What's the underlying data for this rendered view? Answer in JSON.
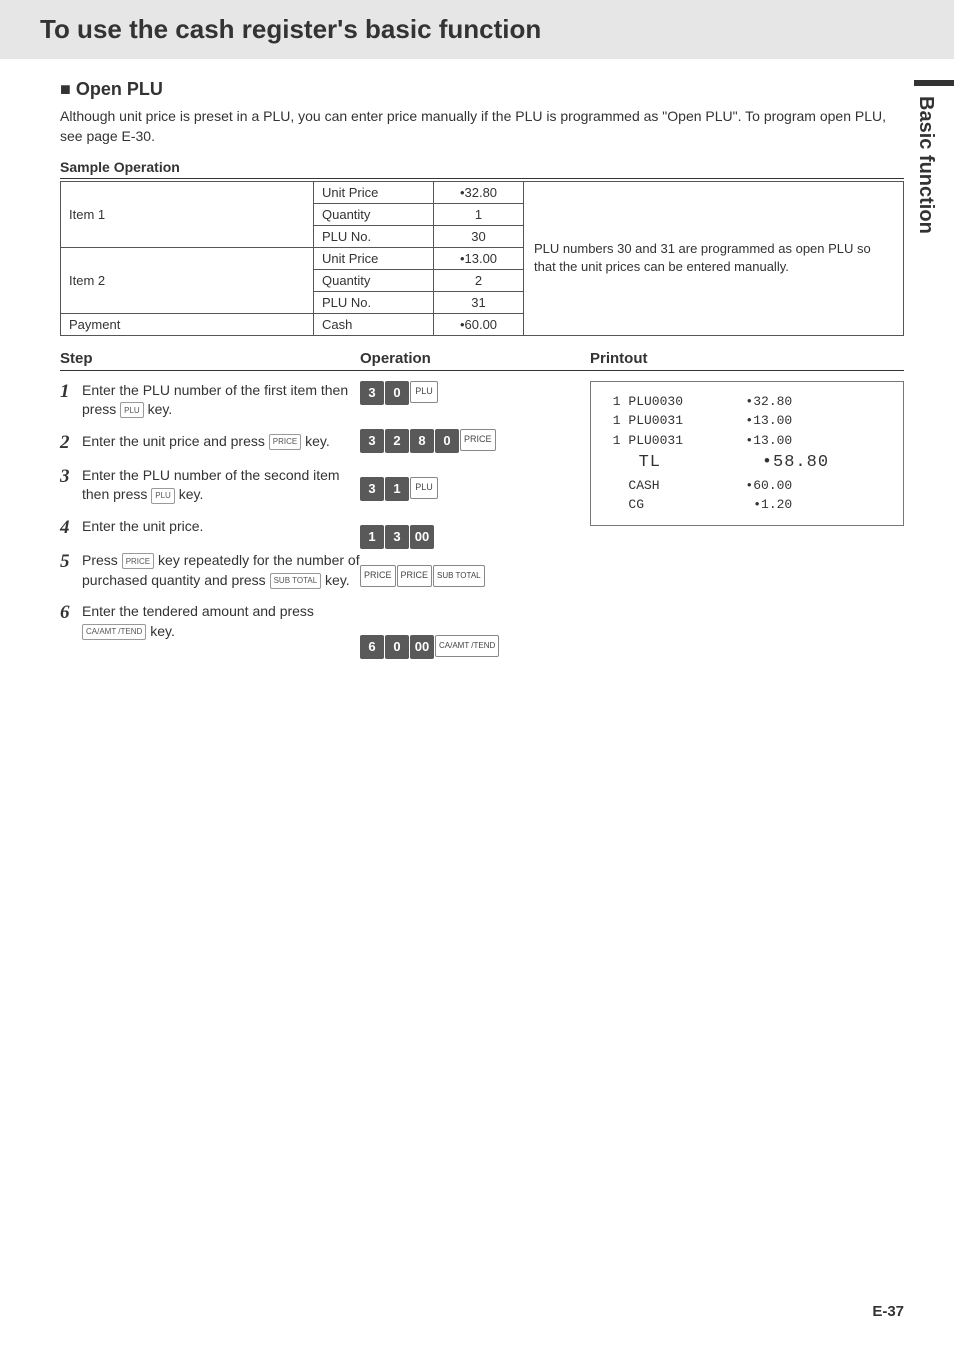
{
  "title": "To use the cash register's basic function",
  "side_tab": "Basic function",
  "section_heading": "■ Open PLU",
  "intro": "Although unit price is preset in a PLU, you can enter price manually if the PLU is programmed as \"Open PLU\". To program open PLU, see page E-30.",
  "sample_heading": "Sample Operation",
  "table": {
    "item1": {
      "label": "Item 1",
      "rows": [
        {
          "k": "Unit Price",
          "v": "•32.80"
        },
        {
          "k": "Quantity",
          "v": "1"
        },
        {
          "k": "PLU No.",
          "v": "30"
        }
      ]
    },
    "item2": {
      "label": "Item 2",
      "rows": [
        {
          "k": "Unit Price",
          "v": "•13.00"
        },
        {
          "k": "Quantity",
          "v": "2"
        },
        {
          "k": "PLU No.",
          "v": "31"
        }
      ]
    },
    "payment": {
      "label": "Payment",
      "k": "Cash",
      "v": "•60.00"
    },
    "note": "PLU numbers 30 and 31 are programmed as open PLU so that the unit prices can be entered manually."
  },
  "col_headers": {
    "step": "Step",
    "op": "Operation",
    "print": "Printout"
  },
  "steps": [
    {
      "n": "1",
      "text_a": "Enter the PLU number of the first item then press ",
      "key": "PLU",
      "text_b": " key."
    },
    {
      "n": "2",
      "text_a": "Enter the unit price and press ",
      "key": "PRICE",
      "text_b": " key."
    },
    {
      "n": "3",
      "text_a": "Enter the PLU number of the second item then press ",
      "key": "PLU",
      "text_b": " key."
    },
    {
      "n": "4",
      "text_a": "Enter the unit price.",
      "key": "",
      "text_b": ""
    },
    {
      "n": "5",
      "text_a": "Press ",
      "key": "PRICE",
      "text_b": " key repeatedly for the number of purchased quantity and press ",
      "key2": "SUB TOTAL",
      "text_c": " key."
    },
    {
      "n": "6",
      "text_a": "Enter the tendered amount and press ",
      "key": "CA/AMT /TEND",
      "text_b": " key."
    }
  ],
  "ops": [
    [
      {
        "t": "d",
        "v": "3"
      },
      {
        "t": "d",
        "v": "0"
      },
      {
        "t": "l",
        "v": "PLU"
      }
    ],
    [
      {
        "t": "d",
        "v": "3"
      },
      {
        "t": "d",
        "v": "2"
      },
      {
        "t": "d",
        "v": "8"
      },
      {
        "t": "d",
        "v": "0"
      },
      {
        "t": "l",
        "v": "PRICE"
      }
    ],
    [
      {
        "t": "d",
        "v": "3"
      },
      {
        "t": "d",
        "v": "1"
      },
      {
        "t": "l",
        "v": "PLU"
      }
    ],
    [
      {
        "t": "d",
        "v": "1"
      },
      {
        "t": "d",
        "v": "3"
      },
      {
        "t": "d",
        "v": "00"
      }
    ],
    [
      {
        "t": "l",
        "v": "PRICE"
      },
      {
        "t": "l",
        "v": "PRICE"
      },
      {
        "t": "lw",
        "v": "SUB TOTAL"
      }
    ],
    [
      {
        "t": "d",
        "v": "6"
      },
      {
        "t": "d",
        "v": "0"
      },
      {
        "t": "d",
        "v": "00"
      },
      {
        "t": "lw",
        "v": "CA/AMT /TEND"
      }
    ]
  ],
  "receipt": {
    "lines": [
      " 1 PLU0030        •32.80",
      " 1 PLU0031        •13.00",
      " 1 PLU0031        •13.00"
    ],
    "tl": "   TL         •58.80",
    "cash": "   CASH           •60.00",
    "cg": "   CG              •1.20"
  },
  "page_num": "E-37"
}
